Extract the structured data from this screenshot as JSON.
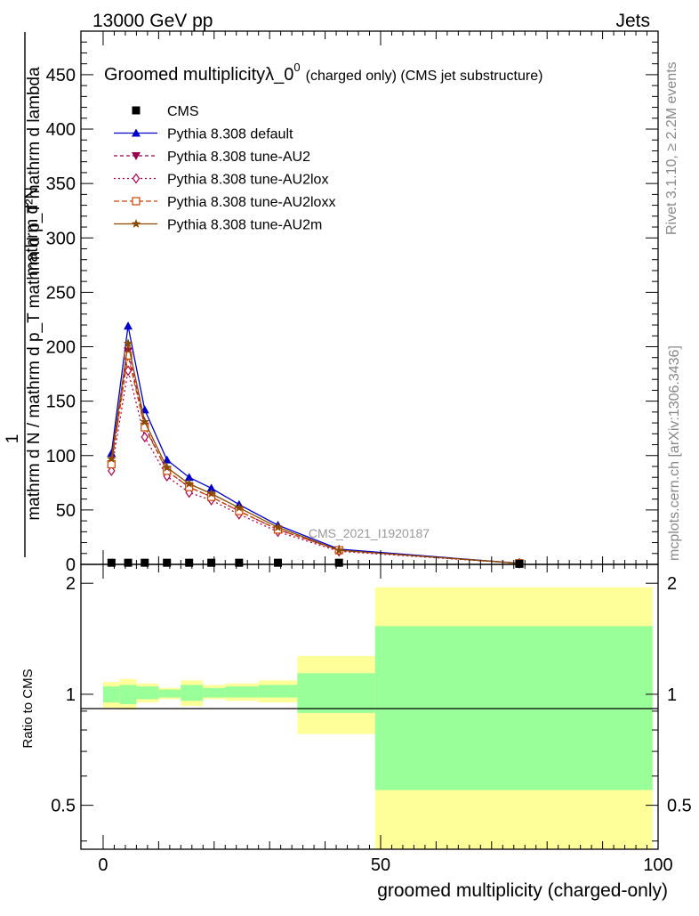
{
  "header": {
    "left": "13000 GeV pp",
    "right": "Jets"
  },
  "side": {
    "rivet": "Rivet 3.1.10, ≥ 2.2M events",
    "mcplots": "mcplots.cern.ch [arXiv:1306.3436]"
  },
  "chart_data": {
    "type": "line",
    "title_main": "Groomed multiplicityλ_0",
    "title_sup": "0",
    "title_suffix": "(charged only) (CMS jet substructure)",
    "watermark": "CMS_2021_I1920187",
    "ylabel_num": "1",
    "ylabel_den": "mathrm d N / mathrm d p_T mathrm d p_T mathrm d lambda",
    "ylabel_top": "mathrm d²N",
    "xlabel": "groomed multiplicity (charged-only)",
    "ratio_ylabel": "Ratio to CMS",
    "xlim": [
      -4,
      100
    ],
    "ylim": [
      0,
      490
    ],
    "x_ticks": [
      "0",
      "50",
      "100"
    ],
    "y_ticks": [
      "0",
      "50",
      "100",
      "150",
      "200",
      "250",
      "300",
      "350",
      "400",
      "450"
    ],
    "ratio_ylim": [
      0.38,
      2.25
    ],
    "ratio_ticks": [
      "0.5",
      "1",
      "2"
    ],
    "data": {
      "name": "CMS",
      "x": [
        1.5,
        4.5,
        7.5,
        11.5,
        15.5,
        19.5,
        24.5,
        31.5,
        42.5,
        75
      ],
      "y": [
        1.5,
        1.5,
        1.5,
        1.5,
        1.5,
        1.5,
        1.5,
        1.5,
        1.5,
        0.5
      ]
    },
    "series": [
      {
        "name": "Pythia 8.308 default",
        "color": "#0000cc",
        "marker": "triangle-up",
        "dash": "",
        "x": [
          1.5,
          4.5,
          7.5,
          11.5,
          15.5,
          19.5,
          24.5,
          31.5,
          42.5,
          75
        ],
        "y": [
          102,
          219,
          142,
          96,
          80,
          70,
          55,
          36,
          14,
          1
        ]
      },
      {
        "name": "Pythia 8.308 tune-AU2",
        "color": "#99004d",
        "marker": "triangle-down",
        "dash": "4,3",
        "x": [
          1.5,
          4.5,
          7.5,
          11.5,
          15.5,
          19.5,
          24.5,
          31.5,
          42.5,
          75
        ],
        "y": [
          92,
          196,
          127,
          86,
          71,
          62,
          49,
          32,
          13,
          1
        ]
      },
      {
        "name": "Pythia 8.308 tune-AU2lox",
        "color": "#b3004d",
        "marker": "diamond-open",
        "dash": "2,3",
        "x": [
          1.5,
          4.5,
          7.5,
          11.5,
          15.5,
          19.5,
          24.5,
          31.5,
          42.5,
          75
        ],
        "y": [
          86,
          178,
          117,
          81,
          66,
          59,
          46,
          30,
          12,
          1
        ]
      },
      {
        "name": "Pythia 8.308 tune-AU2loxx",
        "color": "#cc4400",
        "marker": "square-open",
        "dash": "6,3",
        "x": [
          1.5,
          4.5,
          7.5,
          11.5,
          15.5,
          19.5,
          24.5,
          31.5,
          42.5,
          75
        ],
        "y": [
          92,
          192,
          126,
          86,
          71,
          62,
          49,
          32,
          13,
          1
        ]
      },
      {
        "name": "Pythia 8.308 tune-AU2m",
        "color": "#8a4a00",
        "marker": "star",
        "dash": "",
        "x": [
          1.5,
          4.5,
          7.5,
          11.5,
          15.5,
          19.5,
          24.5,
          31.5,
          42.5,
          75
        ],
        "y": [
          97,
          203,
          131,
          89,
          74,
          65,
          52,
          34,
          13,
          1
        ]
      }
    ],
    "ratio_bands": [
      {
        "x0": 0,
        "x1": 3,
        "stat_lo": 0.95,
        "stat_hi": 1.05,
        "tot_lo": 0.92,
        "tot_hi": 1.08
      },
      {
        "x0": 3,
        "x1": 6,
        "stat_lo": 0.94,
        "stat_hi": 1.06,
        "tot_lo": 0.91,
        "tot_hi": 1.1
      },
      {
        "x0": 6,
        "x1": 10,
        "stat_lo": 0.97,
        "stat_hi": 1.05,
        "tot_lo": 0.95,
        "tot_hi": 1.07
      },
      {
        "x0": 10,
        "x1": 14,
        "stat_lo": 0.98,
        "stat_hi": 1.03,
        "tot_lo": 0.97,
        "tot_hi": 1.04
      },
      {
        "x0": 14,
        "x1": 18,
        "stat_lo": 0.96,
        "stat_hi": 1.06,
        "tot_lo": 0.93,
        "tot_hi": 1.09
      },
      {
        "x0": 18,
        "x1": 22,
        "stat_lo": 0.98,
        "stat_hi": 1.04,
        "tot_lo": 0.97,
        "tot_hi": 1.06
      },
      {
        "x0": 22,
        "x1": 28,
        "stat_lo": 0.98,
        "stat_hi": 1.05,
        "tot_lo": 0.96,
        "tot_hi": 1.07
      },
      {
        "x0": 28,
        "x1": 35,
        "stat_lo": 0.98,
        "stat_hi": 1.06,
        "tot_lo": 0.95,
        "tot_hi": 1.09
      },
      {
        "x0": 35,
        "x1": 49,
        "stat_lo": 0.89,
        "stat_hi": 1.14,
        "tot_lo": 0.78,
        "tot_hi": 1.27
      },
      {
        "x0": 49,
        "x1": 99,
        "stat_lo": 0.55,
        "stat_hi": 1.53,
        "tot_lo": 0.38,
        "tot_hi": 1.95
      }
    ],
    "band_colors": {
      "stat": "#99ff99",
      "total": "#ffff99"
    },
    "legend_position": "top-left",
    "grid": false
  }
}
